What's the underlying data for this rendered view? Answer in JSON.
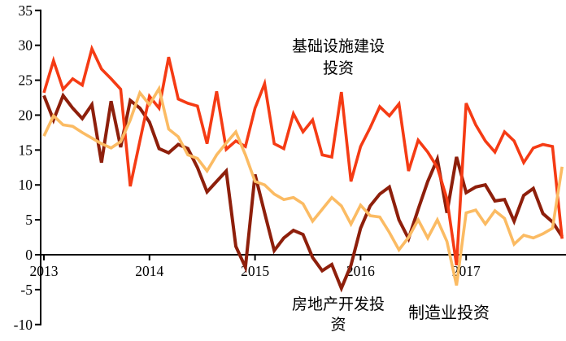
{
  "chart_data": {
    "type": "line",
    "title": "",
    "unit": "%",
    "ylim": [
      -10,
      35
    ],
    "yticks": [
      35,
      30,
      25,
      20,
      15,
      10,
      5,
      0,
      -5,
      -10
    ],
    "xticks": [
      "2013",
      "2014",
      "2015",
      "2016",
      "2017"
    ],
    "grid": false,
    "legend_position": "inline-annotations",
    "x": [
      "2013-02",
      "2013-03",
      "2013-04",
      "2013-05",
      "2013-06",
      "2013-07",
      "2013-08",
      "2013-09",
      "2013-10",
      "2013-11",
      "2013-12",
      "2014-02",
      "2014-03",
      "2014-04",
      "2014-05",
      "2014-06",
      "2014-07",
      "2014-08",
      "2014-09",
      "2014-10",
      "2014-11",
      "2014-12",
      "2015-02",
      "2015-03",
      "2015-04",
      "2015-05",
      "2015-06",
      "2015-07",
      "2015-08",
      "2015-09",
      "2015-10",
      "2015-11",
      "2015-12",
      "2016-02",
      "2016-03",
      "2016-04",
      "2016-05",
      "2016-06",
      "2016-07",
      "2016-08",
      "2016-09",
      "2016-10",
      "2016-11",
      "2016-12",
      "2017-02",
      "2017-03",
      "2017-04",
      "2017-05",
      "2017-06",
      "2017-07",
      "2017-08",
      "2017-09",
      "2017-10",
      "2017-11",
      "2017-12"
    ],
    "series": [
      {
        "id": "infrastructure",
        "name": "基础设施建设投资",
        "color": "#F53B14",
        "values": [
          23.2,
          27.8,
          23.7,
          25.2,
          24.3,
          29.5,
          26.6,
          25.2,
          23.7,
          9.8,
          16.3,
          22.7,
          21.0,
          28.3,
          22.3,
          21.7,
          21.3,
          15.9,
          23.4,
          15.1,
          16.3,
          15.5,
          21.0,
          24.5,
          15.9,
          15.2,
          20.2,
          17.6,
          19.3,
          14.3,
          14.0,
          23.3,
          10.5,
          15.5,
          18.2,
          21.2,
          19.9,
          21.6,
          12.0,
          16.4,
          14.7,
          12.5,
          8.0,
          -1.5,
          21.7,
          18.6,
          16.3,
          14.7,
          17.6,
          16.3,
          13.2,
          15.3,
          15.8,
          15.5,
          2.3
        ]
      },
      {
        "id": "real-estate",
        "name": "房地产开发投资",
        "color": "#8E1F0B",
        "values": [
          22.8,
          19.3,
          22.8,
          21.0,
          19.5,
          21.5,
          13.2,
          22.0,
          15.4,
          22.1,
          21.0,
          19.0,
          15.2,
          14.6,
          15.8,
          15.2,
          12.5,
          9.0,
          10.5,
          12.0,
          1.2,
          -1.8,
          11.5,
          6.0,
          0.6,
          2.4,
          3.5,
          2.9,
          -0.4,
          -2.3,
          -1.4,
          -4.8,
          -1.5,
          3.8,
          7.0,
          8.7,
          9.7,
          5.0,
          2.3,
          6.5,
          10.5,
          13.7,
          6.0,
          14.0,
          8.9,
          9.7,
          10.0,
          7.7,
          7.9,
          4.8,
          8.5,
          9.5,
          5.9,
          4.7,
          2.6
        ]
      },
      {
        "id": "manufacturing",
        "name": "制造业投资",
        "color": "#FBBB63",
        "values": [
          17.0,
          19.9,
          18.6,
          18.4,
          17.5,
          16.7,
          15.9,
          15.3,
          16.2,
          19.3,
          23.2,
          21.5,
          23.8,
          18.0,
          16.9,
          14.3,
          13.8,
          12.0,
          14.3,
          16.0,
          17.6,
          14.3,
          10.5,
          10.0,
          8.7,
          7.9,
          8.2,
          7.3,
          4.8,
          6.5,
          8.2,
          7.0,
          4.4,
          7.1,
          5.6,
          5.4,
          3.2,
          0.7,
          2.5,
          5.0,
          2.4,
          5.0,
          1.9,
          -4.4,
          6.0,
          6.4,
          4.4,
          6.3,
          5.2,
          1.5,
          2.8,
          2.4,
          3.0,
          3.8,
          12.6
        ]
      }
    ],
    "annotations": [
      {
        "series": "infrastructure",
        "text": "基础设施建设\n投资"
      },
      {
        "series": "real-estate",
        "text": "房地产开发投\n资"
      },
      {
        "series": "manufacturing",
        "text": "制造业投资"
      }
    ]
  }
}
